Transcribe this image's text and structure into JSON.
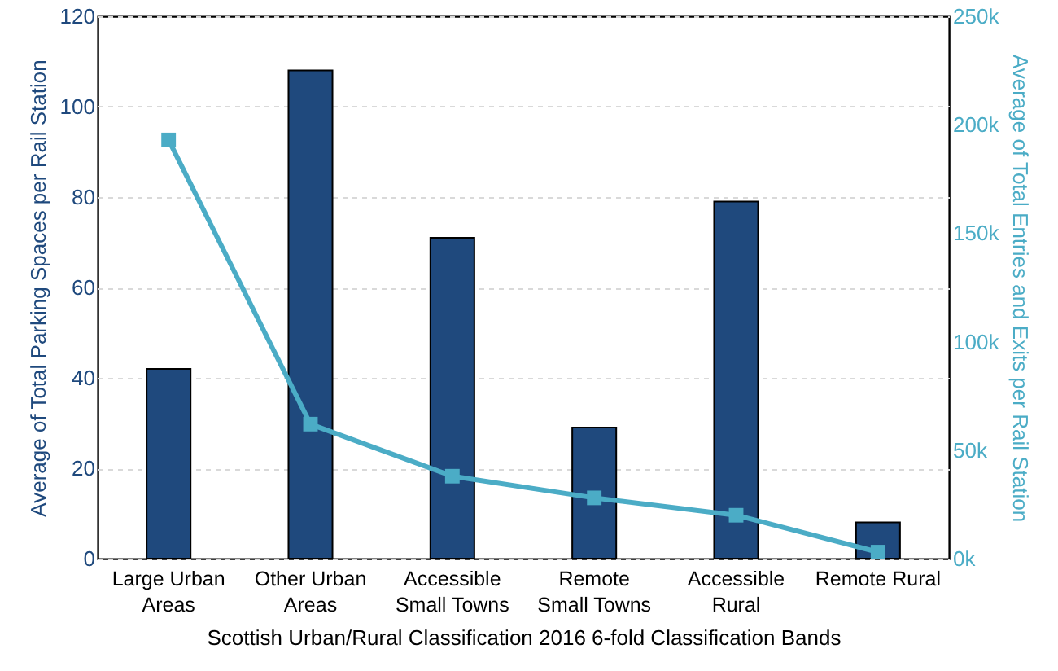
{
  "chart_data": {
    "type": "bar",
    "xlabel": "Scottish Urban/Rural Classification 2016 6-fold Classification Bands",
    "ylabel": "Average of Total Parking Spaces per Rail Station",
    "y2label": "Average of Total Entries and Exits per Rail Station",
    "categories": [
      "Large Urban Areas",
      "Other Urban Areas",
      "Accessible Small Towns",
      "Remote Small Towns",
      "Accessible Rural",
      "Remote Rural"
    ],
    "series": [
      {
        "color": "#1f497d",
        "values": [
          42,
          108,
          71,
          29,
          79,
          8
        ]
      },
      {
        "type": "line",
        "axis": "y2",
        "color": "#4bacc6",
        "marker": "square",
        "values": [
          193000,
          62000,
          38000,
          28000,
          20000,
          3000
        ]
      }
    ],
    "ylim": [
      0,
      120
    ],
    "yticks": [
      0,
      20,
      40,
      60,
      80,
      100,
      120
    ],
    "y2lim": [
      0,
      250000
    ],
    "y2ticks": [
      {
        "value": 0,
        "label": "0k"
      },
      {
        "value": 50000,
        "label": "50k"
      },
      {
        "value": 100000,
        "label": "100k"
      },
      {
        "value": 150000,
        "label": "150k"
      },
      {
        "value": 200000,
        "label": "200k"
      },
      {
        "value": 250000,
        "label": "250k"
      }
    ],
    "grid": "y"
  }
}
